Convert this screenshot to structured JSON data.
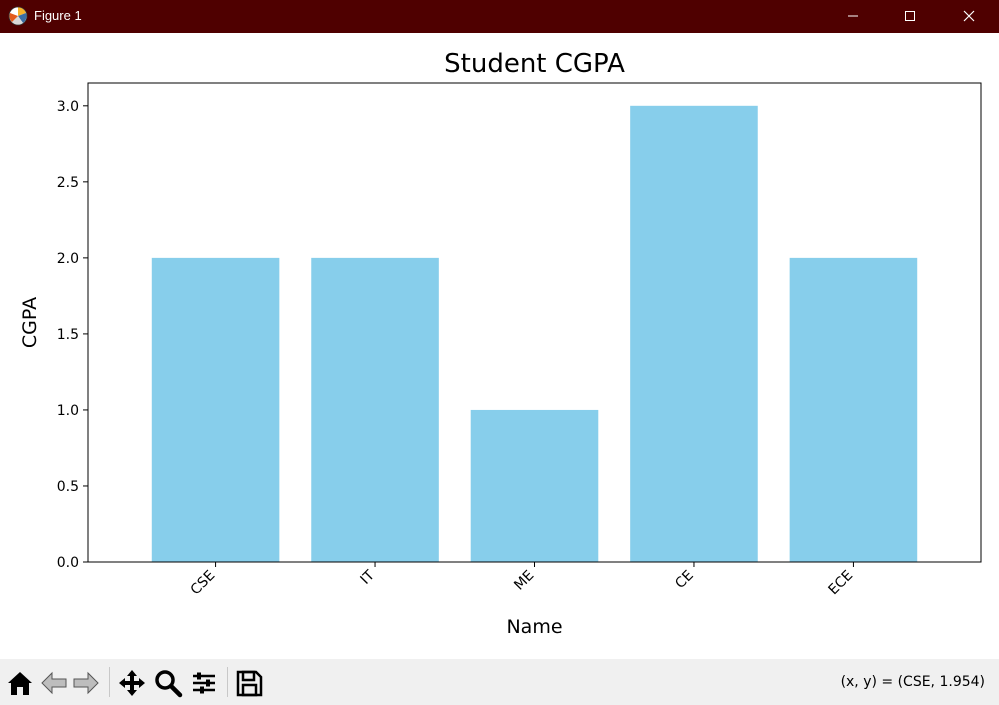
{
  "window": {
    "title": "Figure 1"
  },
  "toolbar": {
    "tools": [
      "home-icon",
      "back-arrow-icon",
      "forward-arrow-icon",
      "pan-icon",
      "zoom-icon",
      "configure-subplots-icon",
      "save-icon"
    ],
    "coords_text": "(x, y) = (CSE, 1.954)"
  },
  "colors": {
    "bar": "#87ceeb",
    "titlebar": "#4f0000",
    "toolbar": "#f0f0f0"
  },
  "chart_data": {
    "type": "bar",
    "title": "Student CGPA",
    "xlabel": "Name",
    "ylabel": "CGPA",
    "categories": [
      "CSE",
      "IT",
      "ME",
      "CE",
      "ECE"
    ],
    "values": [
      2.0,
      2.0,
      1.0,
      3.0,
      2.0
    ],
    "ylim": [
      0,
      3.15
    ],
    "yticks": [
      0.0,
      0.5,
      1.0,
      1.5,
      2.0,
      2.5,
      3.0
    ],
    "ytick_labels": [
      "0.0",
      "0.5",
      "1.0",
      "1.5",
      "2.0",
      "2.5",
      "3.0"
    ],
    "xtick_rotation": 45,
    "grid": false,
    "bar_color": "#87ceeb"
  }
}
